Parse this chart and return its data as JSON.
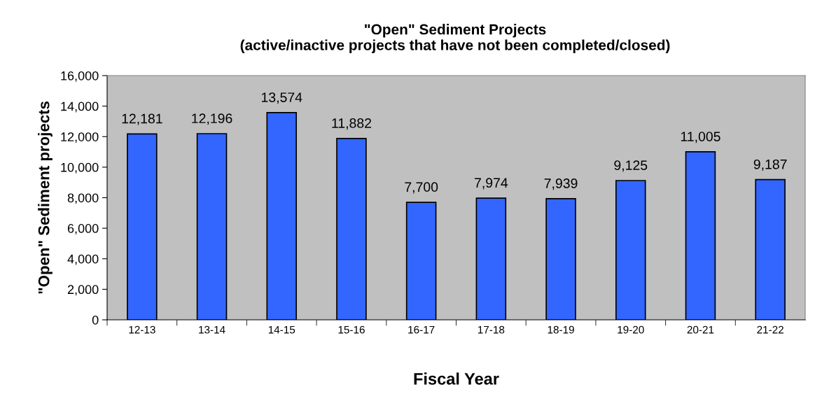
{
  "chart_data": {
    "type": "bar",
    "title": "\"Open\" Sediment Projects\n(active/inactive projects that have not been completed/closed)",
    "xlabel": "Fiscal Year",
    "ylabel": "\"Open\" Sediment projects",
    "categories": [
      "12-13",
      "13-14",
      "14-15",
      "15-16",
      "16-17",
      "17-18",
      "18-19",
      "19-20",
      "20-21",
      "21-22"
    ],
    "values": [
      12181,
      12196,
      13574,
      11882,
      7700,
      7974,
      7939,
      9125,
      11005,
      9187
    ],
    "value_labels": [
      "12,181",
      "12,196",
      "13,574",
      "11,882",
      "7,700",
      "7,974",
      "7,939",
      "9,125",
      "11,005",
      "9,187"
    ],
    "color": "#3366ff",
    "ylim": [
      0,
      16000
    ],
    "yticks": [
      0,
      {
        "value": 2000,
        "label": "2,000"
      },
      {
        "value": 4000,
        "label": "4,000"
      },
      {
        "value": 6000,
        "label": "6,000"
      },
      {
        "value": 8000,
        "label": "8,000"
      },
      {
        "value": 10000,
        "label": "10,000"
      },
      {
        "value": 12000,
        "label": "12,000"
      },
      {
        "value": 14000,
        "label": "14,000"
      },
      {
        "value": 16000,
        "label": "16,000"
      }
    ],
    "grid": false,
    "legend": false
  }
}
